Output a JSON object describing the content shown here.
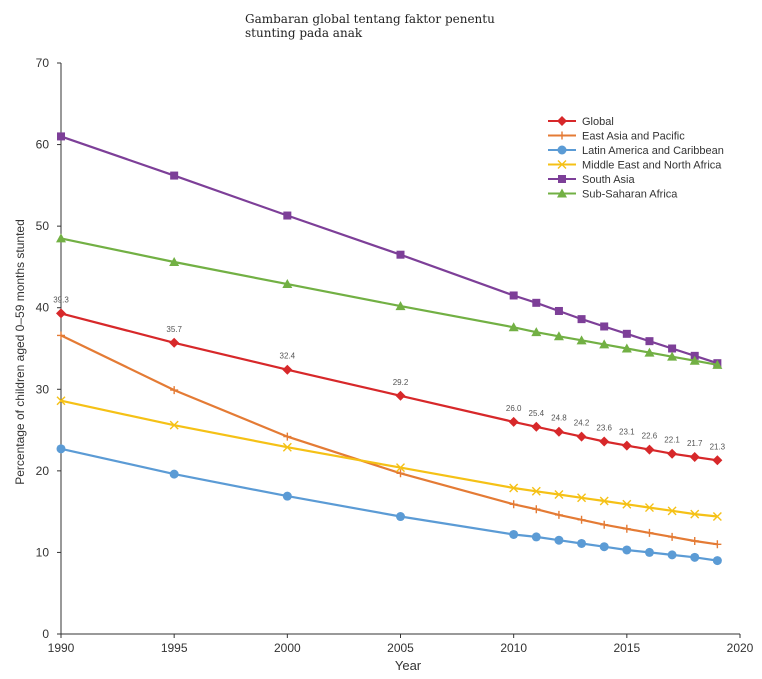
{
  "chart_data": {
    "type": "line",
    "title": [
      "Gambaran global tentang faktor penentu",
      "stunting pada anak"
    ],
    "xlabel": "Year",
    "ylabel": "Percentage of children aged 0–59 months stunted",
    "xlim": [
      1990,
      2020
    ],
    "ylim": [
      0,
      70
    ],
    "x_ticks": [
      1990,
      1995,
      2000,
      2005,
      2010,
      2015,
      2020
    ],
    "x_tick_labels": [
      "1990",
      "1995",
      "2000",
      "2005",
      "2010",
      "2015",
      "2020"
    ],
    "y_ticks": [
      0,
      10,
      20,
      30,
      40,
      50,
      60,
      70
    ],
    "y_tick_labels": [
      "0",
      "10",
      "20",
      "30",
      "40",
      "50",
      "60",
      "70"
    ],
    "grid": false,
    "legend_position": "top-right",
    "x": [
      1990,
      1995,
      2000,
      2005,
      2010,
      2011,
      2012,
      2013,
      2014,
      2015,
      2016,
      2017,
      2018,
      2019
    ],
    "series": [
      {
        "name": "Global",
        "color": "#d7282a",
        "marker": "diamond",
        "values": [
          39.3,
          35.7,
          32.4,
          29.2,
          26.0,
          25.4,
          24.8,
          24.2,
          23.6,
          23.1,
          22.6,
          22.1,
          21.7,
          21.3
        ],
        "data_labels": [
          "39.3",
          "35.7",
          "32.4",
          "29.2",
          "26.0",
          "25.4",
          "24.8",
          "24.2",
          "23.6",
          "23.1",
          "22.6",
          "22.1",
          "21.7",
          "21.3"
        ]
      },
      {
        "name": "East Asia and Pacific",
        "color": "#e47b35",
        "marker": "plus",
        "values": [
          36.6,
          29.9,
          24.2,
          19.7,
          15.9,
          15.3,
          14.6,
          14.0,
          13.4,
          12.9,
          12.4,
          11.9,
          11.4,
          11.0
        ]
      },
      {
        "name": "Latin America and Caribbean",
        "color": "#5b9bd5",
        "marker": "circle",
        "values": [
          22.7,
          19.6,
          16.9,
          14.4,
          12.2,
          11.9,
          11.5,
          11.1,
          10.7,
          10.3,
          10.0,
          9.7,
          9.4,
          9.0
        ]
      },
      {
        "name": "Middle East and North Africa",
        "color": "#f5c116",
        "marker": "x",
        "values": [
          28.6,
          25.6,
          22.9,
          20.4,
          17.9,
          17.5,
          17.1,
          16.7,
          16.3,
          15.9,
          15.5,
          15.1,
          14.7,
          14.4
        ]
      },
      {
        "name": "South Asia",
        "color": "#7d3f98",
        "marker": "square",
        "values": [
          61.0,
          56.2,
          51.3,
          46.5,
          41.5,
          40.6,
          39.6,
          38.6,
          37.7,
          36.8,
          35.9,
          35.0,
          34.1,
          33.2
        ]
      },
      {
        "name": "Sub-Saharan Africa",
        "color": "#72b044",
        "marker": "triangle",
        "values": [
          48.5,
          45.6,
          42.9,
          40.2,
          37.6,
          37.0,
          36.5,
          36.0,
          35.5,
          35.0,
          34.5,
          34.0,
          33.5,
          33.0
        ]
      }
    ]
  }
}
